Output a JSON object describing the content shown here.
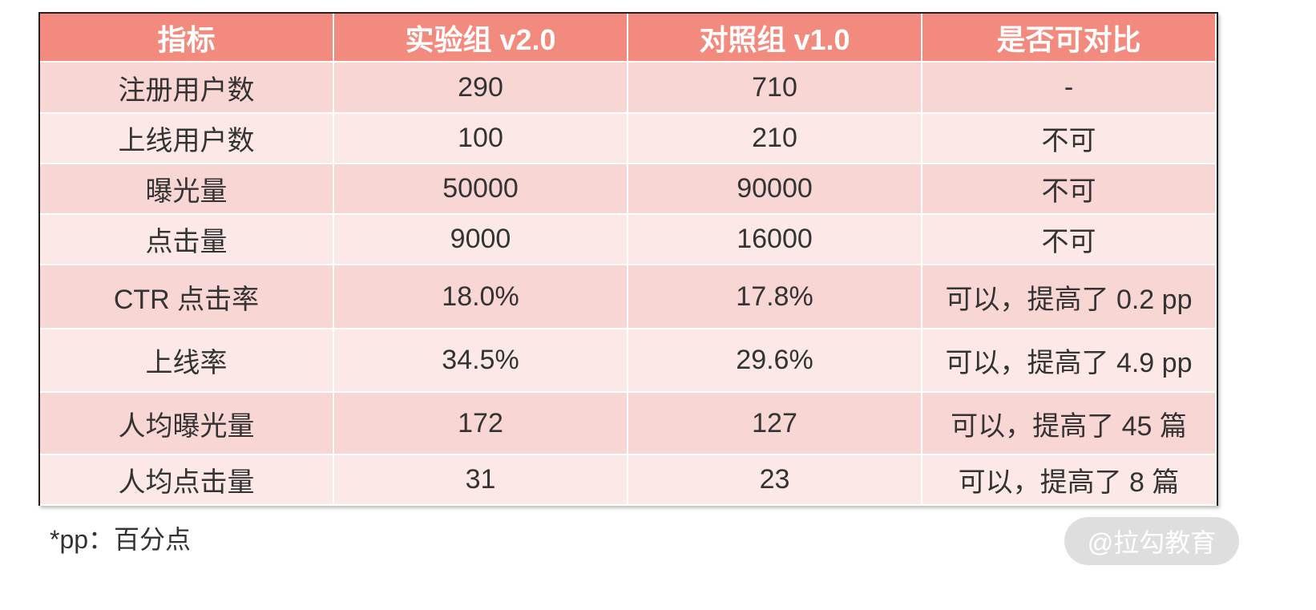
{
  "table": {
    "header": [
      "指标",
      "实验组 v2.0",
      "对照组 v1.0",
      "是否可对比"
    ],
    "rows": [
      [
        "注册用户数",
        "290",
        "710",
        "-"
      ],
      [
        "上线用户数",
        "100",
        "210",
        "不可"
      ],
      [
        "曝光量",
        "50000",
        "90000",
        "不可"
      ],
      [
        "点击量",
        "9000",
        "16000",
        "不可"
      ],
      [
        "CTR 点击率",
        "18.0%",
        "17.8%",
        "可以，提高了 0.2 pp"
      ],
      [
        "上线率",
        "34.5%",
        "29.6%",
        "可以，提高了 4.9 pp"
      ],
      [
        "人均曝光量",
        "172",
        "127",
        "可以，提高了 45 篇"
      ],
      [
        "人均点击量",
        "31",
        "23",
        "可以，提高了 8 篇"
      ]
    ]
  },
  "footnote": "*pp：百分点",
  "watermark": "@拉勾教育"
}
